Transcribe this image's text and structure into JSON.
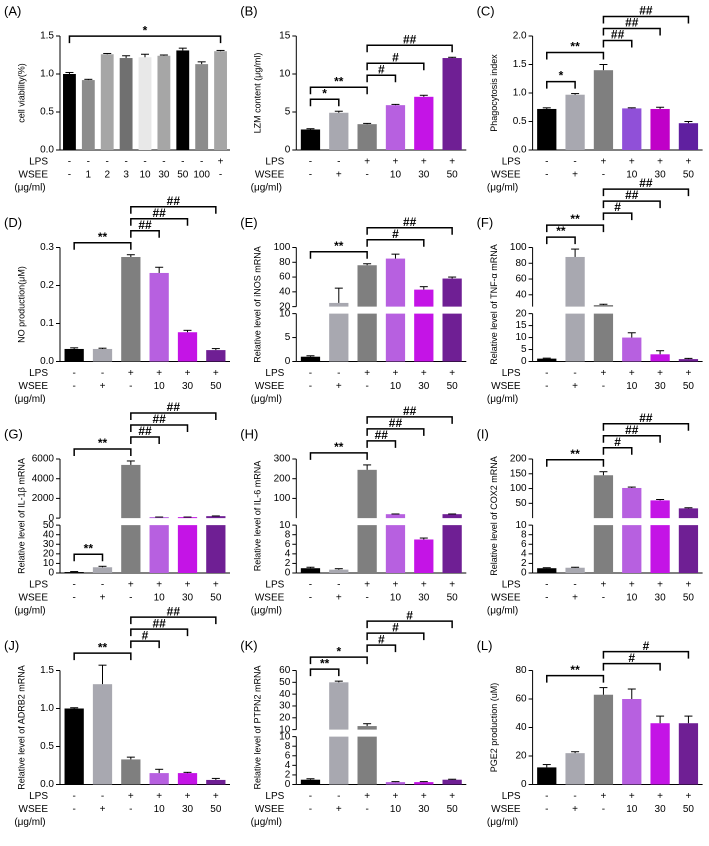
{
  "chart_data": [
    {
      "type": "bar",
      "title": "(A)",
      "ylabel": "cell viability(%)",
      "values": [
        1.0,
        0.92,
        1.26,
        1.21,
        1.22,
        1.24,
        1.31,
        1.13,
        1.3
      ],
      "errors": [
        0.02,
        0.01,
        0.01,
        0.03,
        0.04,
        0.01,
        0.03,
        0.03,
        0.01
      ],
      "colors": [
        "#000000",
        "#8c8c8c",
        "#a6a6a6",
        "#707070",
        "#e8e8e8",
        "#a6a6a6",
        "#000000",
        "#8c8c8c",
        "#a6a6a6"
      ],
      "ylim": [
        0,
        1.5
      ],
      "yticks": [
        {
          "value": 0,
          "label": "0.0"
        },
        {
          "value": 0.5,
          "label": "0.5"
        },
        {
          "value": 1,
          "label": "1.0"
        },
        {
          "value": 1.5,
          "label": "1.5"
        }
      ],
      "rows": [
        {
          "label": "LPS",
          "values": [
            "-",
            "-",
            "-",
            "-",
            "-",
            "-",
            "-",
            "-",
            "+"
          ]
        },
        {
          "label": "WSEE",
          "values": [
            "-",
            "1",
            "2",
            "3",
            "10",
            "30",
            "50",
            "100",
            "-"
          ]
        }
      ],
      "unit": "(μg/ml)",
      "brackets": [
        {
          "from": 0,
          "to": 8,
          "label": "*"
        }
      ]
    },
    {
      "type": "bar",
      "title": "(B)",
      "ylabel": "LZM content (μg/ml)",
      "values": [
        2.7,
        4.9,
        3.4,
        5.9,
        7.0,
        12.1
      ],
      "errors": [
        0.1,
        0.2,
        0.1,
        0.1,
        0.2,
        0.1
      ],
      "colors": [
        "#000000",
        "#a8a8b0",
        "#7f7f7f",
        "#b760e0",
        "#c414e6",
        "#6f1f94"
      ],
      "ylim": [
        0,
        15
      ],
      "yticks": [
        0,
        5,
        10,
        15
      ],
      "rows": [
        {
          "label": "LPS",
          "values": [
            "-",
            "-",
            "+",
            "+",
            "+",
            "+"
          ]
        },
        {
          "label": "WSEE",
          "values": [
            "-",
            "+",
            "-",
            "10",
            "30",
            "50"
          ]
        }
      ],
      "unit": "(μg/ml)",
      "brackets": [
        {
          "from": 0,
          "to": 1,
          "label": "*"
        },
        {
          "from": 0,
          "to": 2,
          "label": "**"
        },
        {
          "from": 2,
          "to": 3,
          "label": "#"
        },
        {
          "from": 2,
          "to": 4,
          "label": "#"
        },
        {
          "from": 2,
          "to": 5,
          "label": "##"
        }
      ]
    },
    {
      "type": "bar",
      "title": "(C)",
      "ylabel": "Phagocytosis index",
      "values": [
        0.72,
        0.97,
        1.4,
        0.73,
        0.72,
        0.47
      ],
      "errors": [
        0.02,
        0.02,
        0.1,
        0.01,
        0.03,
        0.03
      ],
      "colors": [
        "#000000",
        "#a8a8b0",
        "#7f7f7f",
        "#9050d8",
        "#c000c8",
        "#6020a0"
      ],
      "ylim": [
        0,
        2
      ],
      "yticks": [
        {
          "value": 0,
          "label": "0.0"
        },
        {
          "value": 0.5,
          "label": "0.5"
        },
        {
          "value": 1,
          "label": "1.0"
        },
        {
          "value": 1.5,
          "label": "1.5"
        },
        {
          "value": 2,
          "label": "2.0"
        }
      ],
      "rows": [
        {
          "label": "LPS",
          "values": [
            "-",
            "-",
            "+",
            "+",
            "+",
            "+"
          ]
        },
        {
          "label": "WSEE",
          "values": [
            "-",
            "+",
            "-",
            "10",
            "30",
            "50"
          ]
        }
      ],
      "unit": "(μg/ml)",
      "brackets": [
        {
          "from": 0,
          "to": 1,
          "label": "*"
        },
        {
          "from": 0,
          "to": 2,
          "label": "**"
        },
        {
          "from": 2,
          "to": 3,
          "label": "##"
        },
        {
          "from": 2,
          "to": 4,
          "label": "##"
        },
        {
          "from": 2,
          "to": 5,
          "label": "##"
        }
      ]
    },
    {
      "type": "bar",
      "title": "(D)",
      "ylabel": "NO production(μM)",
      "values": [
        0.033,
        0.033,
        0.275,
        0.233,
        0.077,
        0.03
      ],
      "errors": [
        0.003,
        0.002,
        0.006,
        0.015,
        0.005,
        0.004
      ],
      "colors": [
        "#000000",
        "#a8a8b0",
        "#7f7f7f",
        "#b760e0",
        "#c414e6",
        "#6f1f94"
      ],
      "ylim": [
        0,
        0.3
      ],
      "yticks": [
        {
          "value": 0,
          "label": "0.0"
        },
        {
          "value": 0.1,
          "label": "0.1"
        },
        {
          "value": 0.2,
          "label": "0.2"
        },
        {
          "value": 0.3,
          "label": "0.3"
        }
      ],
      "rows": [
        {
          "label": "LPS",
          "values": [
            "-",
            "-",
            "+",
            "+",
            "+",
            "+"
          ]
        },
        {
          "label": "WSEE",
          "values": [
            "-",
            "+",
            "-",
            "10",
            "30",
            "50"
          ]
        }
      ],
      "unit": "(μg/ml)",
      "brackets": [
        {
          "from": 0,
          "to": 2,
          "label": "**"
        },
        {
          "from": 2,
          "to": 3,
          "label": "##"
        },
        {
          "from": 2,
          "to": 4,
          "label": "##"
        },
        {
          "from": 2,
          "to": 5,
          "label": "##"
        }
      ]
    },
    {
      "type": "bar",
      "title": "(E)",
      "ylabel": "Relative level of iNOS mRNA",
      "values": [
        1,
        25,
        76,
        85,
        43,
        58
      ],
      "errors": [
        0.2,
        20,
        2,
        6,
        4,
        2
      ],
      "colors": [
        "#000000",
        "#a8a8b0",
        "#7f7f7f",
        "#b760e0",
        "#c414e6",
        "#6f1f94"
      ],
      "segments": [
        {
          "ylim": [
            0,
            10
          ],
          "yticks": [
            0,
            5,
            10
          ]
        },
        {
          "ylim": [
            20,
            100
          ],
          "yticks": [
            20,
            40,
            60,
            80,
            100
          ]
        }
      ],
      "rows": [
        {
          "label": "LPS",
          "values": [
            "-",
            "-",
            "+",
            "+",
            "+",
            "+"
          ]
        },
        {
          "label": "WSEE",
          "values": [
            "-",
            "+",
            "-",
            "10",
            "30",
            "50"
          ]
        }
      ],
      "unit": "(μg/ml)",
      "brackets": [
        {
          "from": 0,
          "to": 2,
          "label": "**"
        },
        {
          "from": 2,
          "to": 4,
          "label": "#"
        },
        {
          "from": 2,
          "to": 5,
          "label": "##"
        }
      ]
    },
    {
      "type": "bar",
      "title": "(F)",
      "ylabel": "Relative level of TNF-α mRNA",
      "values": [
        1.2,
        88,
        27,
        10,
        3,
        1
      ],
      "errors": [
        0.2,
        10,
        1,
        2,
        1.5,
        0.3
      ],
      "colors": [
        "#000000",
        "#a8a8b0",
        "#7f7f7f",
        "#b760e0",
        "#c414e6",
        "#6f1f94"
      ],
      "segments": [
        {
          "ylim": [
            0,
            20
          ],
          "yticks": [
            0,
            5,
            10,
            15,
            20
          ]
        },
        {
          "ylim": [
            25,
            100
          ],
          "yticks": [
            40,
            60,
            80,
            100
          ]
        }
      ],
      "rows": [
        {
          "label": "LPS",
          "values": [
            "-",
            "-",
            "+",
            "+",
            "+",
            "+"
          ]
        },
        {
          "label": "WSEE",
          "values": [
            "-",
            "+",
            "-",
            "10",
            "30",
            "50"
          ]
        }
      ],
      "unit": "(μg/ml)",
      "brackets": [
        {
          "from": 0,
          "to": 1,
          "label": "**"
        },
        {
          "from": 0,
          "to": 2,
          "label": "**"
        },
        {
          "from": 2,
          "to": 3,
          "label": "#"
        },
        {
          "from": 2,
          "to": 4,
          "label": "##"
        },
        {
          "from": 2,
          "to": 5,
          "label": "##"
        }
      ]
    },
    {
      "type": "bar",
      "title": "(G)",
      "ylabel": "Relative level of IL-1β mRNA",
      "values": [
        1,
        6,
        5400,
        100,
        100,
        200
      ],
      "errors": [
        0.5,
        1,
        400,
        10,
        10,
        20
      ],
      "colors": [
        "#000000",
        "#a8a8b0",
        "#7f7f7f",
        "#b760e0",
        "#c414e6",
        "#6f1f94"
      ],
      "segments": [
        {
          "ylim": [
            0,
            50
          ],
          "yticks": [
            0,
            10,
            20,
            30,
            40,
            50
          ]
        },
        {
          "ylim": [
            0,
            6000
          ],
          "yticks": [
            0,
            2000,
            4000,
            6000
          ]
        }
      ],
      "rows": [
        {
          "label": "LPS",
          "values": [
            "-",
            "-",
            "+",
            "+",
            "+",
            "+"
          ]
        },
        {
          "label": "WSEE",
          "values": [
            "-",
            "+",
            "-",
            "10",
            "30",
            "50"
          ]
        }
      ],
      "unit": "(μg/ml)",
      "brackets": [
        {
          "from": 0,
          "to": 1,
          "label": "**"
        },
        {
          "from": 0,
          "to": 2,
          "label": "**"
        },
        {
          "from": 2,
          "to": 3,
          "label": "##"
        },
        {
          "from": 2,
          "to": 4,
          "label": "##"
        },
        {
          "from": 2,
          "to": 5,
          "label": "##"
        }
      ]
    },
    {
      "type": "bar",
      "title": "(H)",
      "ylabel": "Relative level of IL-6 mRNA",
      "values": [
        1,
        0.7,
        245,
        20,
        7,
        20
      ],
      "errors": [
        0.2,
        0.2,
        25,
        1,
        0.3,
        1
      ],
      "colors": [
        "#000000",
        "#a8a8b0",
        "#7f7f7f",
        "#b760e0",
        "#c414e6",
        "#6f1f94"
      ],
      "segments": [
        {
          "ylim": [
            0,
            10
          ],
          "yticks": [
            0,
            2,
            4,
            6,
            8,
            10
          ]
        },
        {
          "ylim": [
            0,
            300
          ],
          "yticks": [
            100,
            200,
            300
          ]
        }
      ],
      "rows": [
        {
          "label": "LPS",
          "values": [
            "-",
            "-",
            "+",
            "+",
            "+",
            "+"
          ]
        },
        {
          "label": "WSEE",
          "values": [
            "-",
            "+",
            "-",
            "10",
            "30",
            "50"
          ]
        }
      ],
      "unit": "(μg/ml)",
      "brackets": [
        {
          "from": 0,
          "to": 2,
          "label": "**"
        },
        {
          "from": 2,
          "to": 3,
          "label": "##"
        },
        {
          "from": 2,
          "to": 4,
          "label": "##"
        },
        {
          "from": 2,
          "to": 5,
          "label": "##"
        }
      ]
    },
    {
      "type": "bar",
      "title": "(I)",
      "ylabel": "Relative level of COX2 mRNA",
      "values": [
        1,
        1.1,
        145,
        102,
        60,
        33
      ],
      "errors": [
        0.1,
        0.1,
        12,
        3,
        3,
        2
      ],
      "colors": [
        "#000000",
        "#a8a8b0",
        "#7f7f7f",
        "#b760e0",
        "#c414e6",
        "#6f1f94"
      ],
      "segments": [
        {
          "ylim": [
            0,
            10
          ],
          "yticks": [
            0,
            2,
            4,
            6,
            8,
            10
          ]
        },
        {
          "ylim": [
            0,
            200
          ],
          "yticks": [
            50,
            100,
            150,
            200
          ]
        }
      ],
      "rows": [
        {
          "label": "LPS",
          "values": [
            "-",
            "-",
            "+",
            "+",
            "+",
            "+"
          ]
        },
        {
          "label": "WSEE",
          "values": [
            "-",
            "+",
            "-",
            "10",
            "30",
            "50"
          ]
        }
      ],
      "unit": "(μg/ml)",
      "brackets": [
        {
          "from": 0,
          "to": 2,
          "label": "**"
        },
        {
          "from": 2,
          "to": 3,
          "label": "#"
        },
        {
          "from": 2,
          "to": 4,
          "label": "##"
        },
        {
          "from": 2,
          "to": 5,
          "label": "##"
        }
      ]
    },
    {
      "type": "bar",
      "title": "(J)",
      "ylabel": "Relative level of ADRB2 mRNA",
      "values": [
        1.0,
        1.32,
        0.33,
        0.15,
        0.15,
        0.06
      ],
      "errors": [
        0.01,
        0.25,
        0.03,
        0.05,
        0.01,
        0.02
      ],
      "colors": [
        "#000000",
        "#a8a8b0",
        "#7f7f7f",
        "#b760e0",
        "#c414e6",
        "#6f1f94"
      ],
      "ylim": [
        0,
        1.5
      ],
      "yticks": [
        {
          "value": 0,
          "label": "0.0"
        },
        {
          "value": 0.5,
          "label": "0.5"
        },
        {
          "value": 1,
          "label": "1.0"
        },
        {
          "value": 1.5,
          "label": "1.5"
        }
      ],
      "rows": [
        {
          "label": "LPS",
          "values": [
            "-",
            "-",
            "+",
            "+",
            "+",
            "+"
          ]
        },
        {
          "label": "WSEE",
          "values": [
            "-",
            "+",
            "-",
            "10",
            "30",
            "50"
          ]
        }
      ],
      "unit": "(μg/ml)",
      "brackets": [
        {
          "from": 0,
          "to": 2,
          "label": "**"
        },
        {
          "from": 2,
          "to": 3,
          "label": "#"
        },
        {
          "from": 2,
          "to": 4,
          "label": "##"
        },
        {
          "from": 2,
          "to": 5,
          "label": "##"
        }
      ]
    },
    {
      "type": "bar",
      "title": "(K)",
      "ylabel": "Relative level of PTPN2 mRNA",
      "values": [
        1,
        50,
        13,
        0.5,
        0.5,
        1
      ],
      "errors": [
        0.2,
        1,
        2,
        0.1,
        0.1,
        0.1
      ],
      "colors": [
        "#000000",
        "#a8a8b0",
        "#7f7f7f",
        "#b760e0",
        "#c414e6",
        "#6f1f94"
      ],
      "segments": [
        {
          "ylim": [
            0,
            10
          ],
          "yticks": [
            0,
            2,
            4,
            6,
            8,
            10
          ]
        },
        {
          "ylim": [
            10,
            60
          ],
          "yticks": [
            10,
            20,
            30,
            40,
            50,
            60
          ]
        }
      ],
      "rows": [
        {
          "label": "LPS",
          "values": [
            "-",
            "-",
            "+",
            "+",
            "+",
            "+"
          ]
        },
        {
          "label": "WSEE",
          "values": [
            "-",
            "+",
            "-",
            "10",
            "30",
            "50"
          ]
        }
      ],
      "unit": "(μg/ml)",
      "brackets": [
        {
          "from": 0,
          "to": 1,
          "label": "**"
        },
        {
          "from": 0,
          "to": 2,
          "label": "*"
        },
        {
          "from": 2,
          "to": 3,
          "label": "#"
        },
        {
          "from": 2,
          "to": 4,
          "label": "#"
        },
        {
          "from": 2,
          "to": 5,
          "label": "#"
        }
      ]
    },
    {
      "type": "bar",
      "title": "(L)",
      "ylabel": "PGE2 production (uM)",
      "values": [
        12,
        22,
        63,
        60,
        43,
        43
      ],
      "errors": [
        2,
        1,
        5,
        7,
        5,
        5
      ],
      "colors": [
        "#000000",
        "#a8a8b0",
        "#7f7f7f",
        "#b760e0",
        "#c414e6",
        "#6f1f94"
      ],
      "ylim": [
        0,
        80
      ],
      "yticks": [
        0,
        20,
        40,
        60,
        80
      ],
      "rows": [
        {
          "label": "LPS",
          "values": [
            "-",
            "-",
            "+",
            "+",
            "+",
            "+"
          ]
        },
        {
          "label": "WSEE",
          "values": [
            "-",
            "+",
            "-",
            "10",
            "30",
            "50"
          ]
        }
      ],
      "unit": "(μg/ml)",
      "brackets": [
        {
          "from": 0,
          "to": 2,
          "label": "**"
        },
        {
          "from": 2,
          "to": 4,
          "label": "#"
        },
        {
          "from": 2,
          "to": 5,
          "label": "#"
        }
      ]
    }
  ]
}
